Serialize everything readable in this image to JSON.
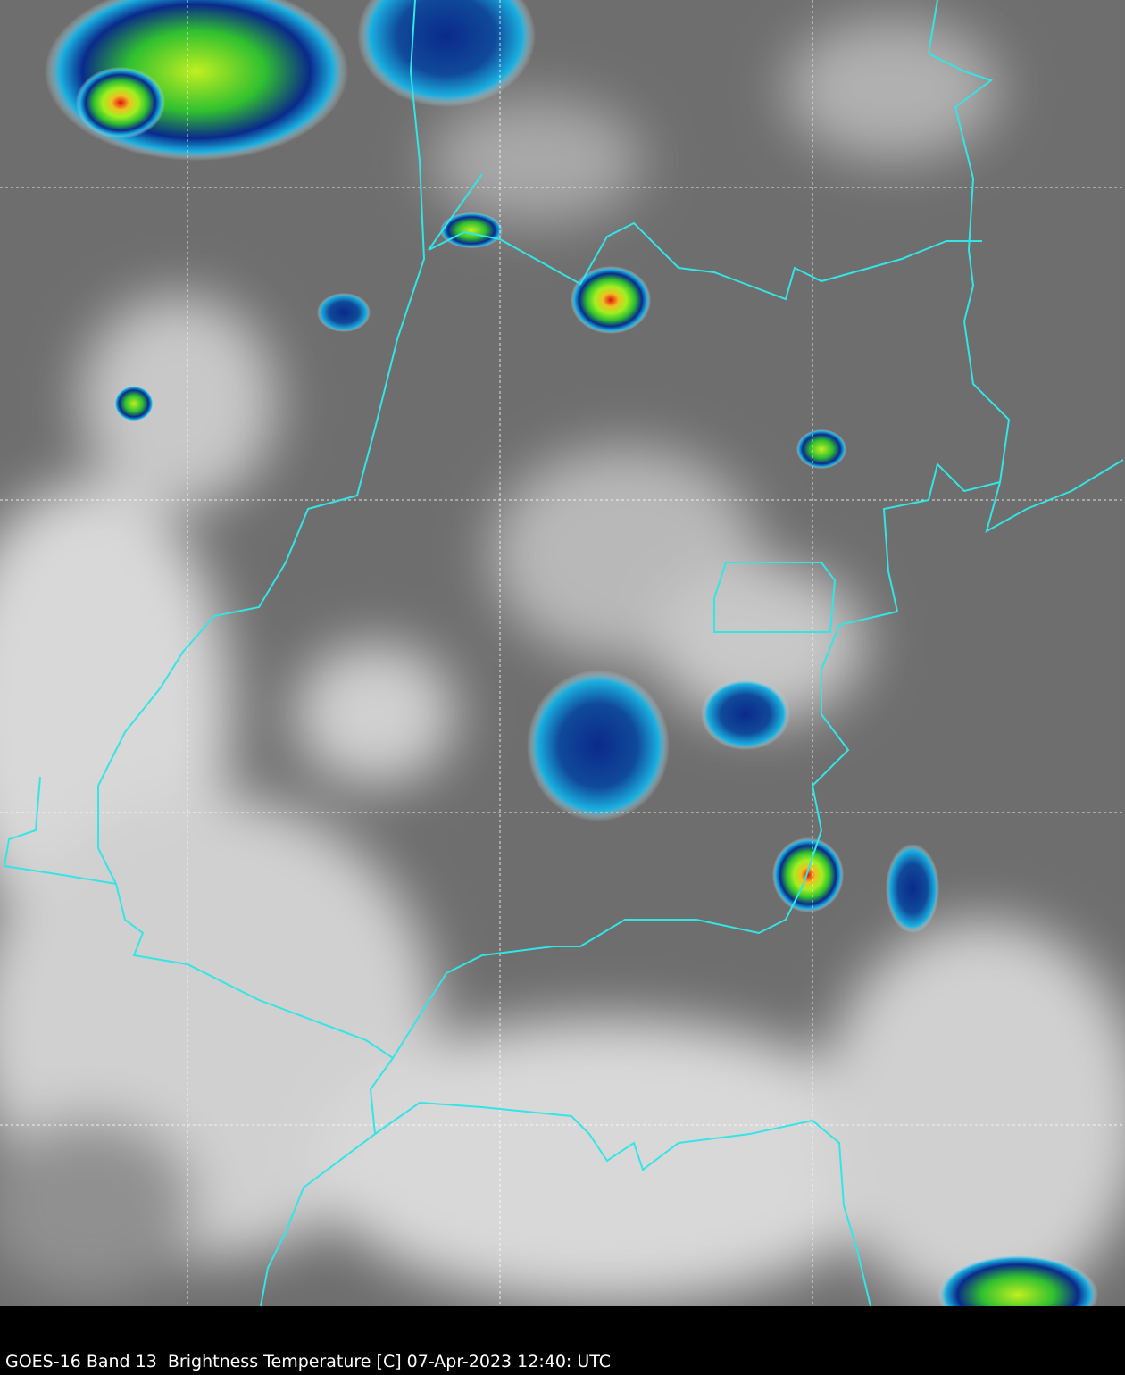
{
  "caption": "GOES-16 Band 13  Brightness Temperature [C] 07-Apr-2023 12:40: UTC",
  "colors": {
    "boundary": "#33e5e5",
    "gridline": "#ffffff",
    "background_land": "#6e6e6e",
    "cold_cloud_blue": "#0a2a8a",
    "cold_cloud_green": "#3cdc28",
    "cold_cloud_red": "#e01010"
  },
  "map": {
    "gridlines": "dashed white",
    "colormap": "grayscale with color enhancement for cold cloud tops"
  }
}
